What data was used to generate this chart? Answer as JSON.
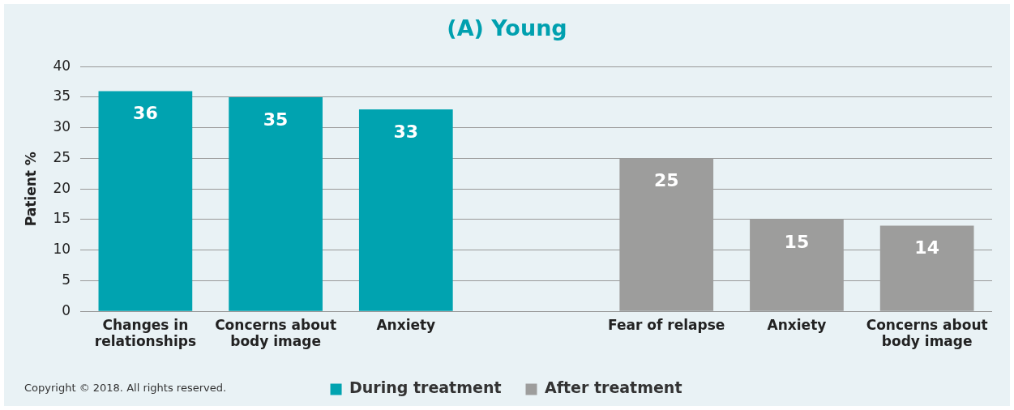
{
  "chart_data": {
    "type": "bar",
    "title": "(A) Young",
    "ylabel": "Patient %",
    "categories": [
      "Changes in relationships",
      "Concerns about body image",
      "Anxiety",
      null,
      "Fear of relapse",
      "Anxiety",
      "Concerns about body image"
    ],
    "series": [
      {
        "name": "During treatment",
        "color": "#00a3b0",
        "values": [
          36,
          35,
          33,
          null,
          null,
          null,
          null
        ]
      },
      {
        "name": "After treatment",
        "color": "#9d9d9c",
        "values": [
          null,
          null,
          null,
          null,
          25,
          15,
          14
        ]
      }
    ],
    "ylim": [
      0,
      40
    ],
    "yticks": [
      0,
      5,
      10,
      15,
      20,
      25,
      30,
      35,
      40
    ],
    "grid": "y",
    "legend": "bottom",
    "data_labels": true,
    "annotations": [
      "Copyright © 2018. All rights reserved."
    ]
  }
}
